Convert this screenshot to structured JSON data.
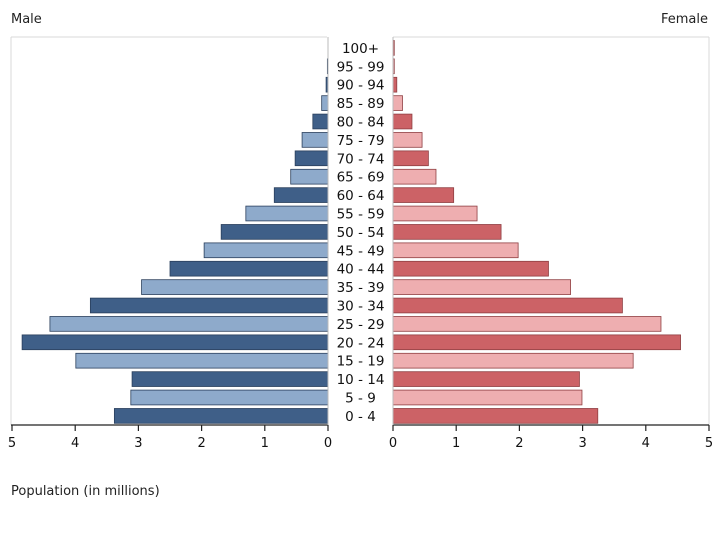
{
  "chart_data": {
    "type": "bar",
    "subtype": "population-pyramid",
    "title": "",
    "xlabel": "Population (in millions)",
    "left_label": "Male",
    "right_label": "Female",
    "categories": [
      "100+",
      "95 - 99",
      "90 - 94",
      "85 - 89",
      "80 - 84",
      "75 - 79",
      "70 - 74",
      "65 - 69",
      "60 - 64",
      "55 - 59",
      "50 - 54",
      "45 - 49",
      "40 - 44",
      "35 - 39",
      "30 - 34",
      "25 - 29",
      "20 - 24",
      "15 - 19",
      "10 - 14",
      "5 - 9",
      "0 - 4"
    ],
    "series": [
      {
        "name": "Male",
        "side": "left",
        "values": [
          0.0,
          0.01,
          0.03,
          0.1,
          0.24,
          0.41,
          0.52,
          0.59,
          0.85,
          1.3,
          1.69,
          1.96,
          2.5,
          2.95,
          3.76,
          4.4,
          4.84,
          3.99,
          3.1,
          3.12,
          3.38
        ]
      },
      {
        "name": "Female",
        "side": "right",
        "values": [
          0.02,
          0.02,
          0.06,
          0.15,
          0.3,
          0.46,
          0.56,
          0.68,
          0.96,
          1.33,
          1.71,
          1.98,
          2.46,
          2.81,
          3.63,
          4.24,
          4.55,
          3.8,
          2.95,
          2.99,
          3.24
        ]
      }
    ],
    "xlim": [
      0,
      5
    ],
    "x_ticks": [
      "5",
      "4",
      "3",
      "2",
      "1",
      "0",
      "0",
      "1",
      "2",
      "3",
      "4",
      "5"
    ],
    "grid": false,
    "colors": {
      "male_dark": "#3f5f88",
      "male_light": "#8eaacb",
      "female_dark": "#cc6266",
      "female_light": "#eeaeb0",
      "axis": "#222222"
    }
  }
}
